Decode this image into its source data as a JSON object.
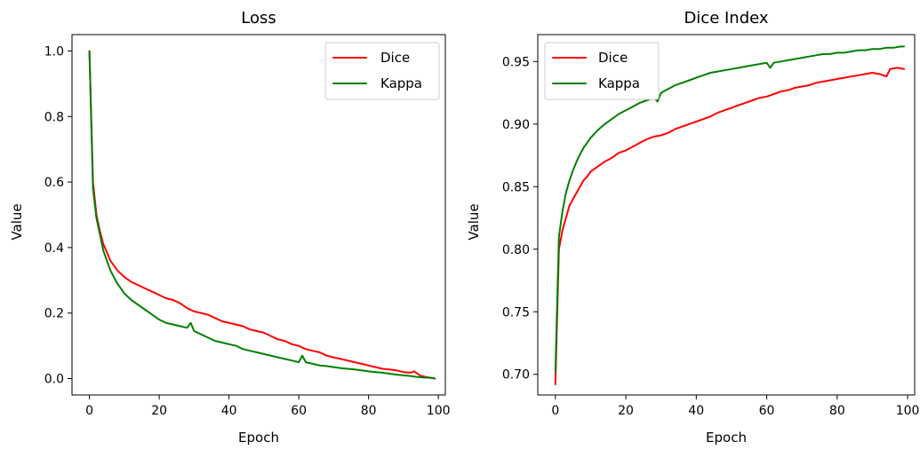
{
  "chart_data": [
    {
      "type": "line",
      "title": "Loss",
      "xlabel": "Epoch",
      "ylabel": "Value",
      "xlim": [
        -5,
        102
      ],
      "ylim": [
        -0.05,
        1.05
      ],
      "xticks": [
        0,
        20,
        40,
        60,
        80,
        100
      ],
      "yticks": [
        0.0,
        0.2,
        0.4,
        0.6,
        0.8,
        1.0
      ],
      "ytick_labels": [
        "0.0",
        "0.2",
        "0.4",
        "0.6",
        "0.8",
        "1.0"
      ],
      "legend_position": "top-right",
      "series": [
        {
          "name": "Dice",
          "color": "#ff0000",
          "x": [
            0,
            1,
            2,
            3,
            4,
            5,
            6,
            7,
            8,
            9,
            10,
            12,
            14,
            16,
            18,
            20,
            22,
            24,
            26,
            28,
            30,
            32,
            34,
            36,
            38,
            40,
            42,
            44,
            46,
            48,
            50,
            52,
            54,
            56,
            58,
            60,
            62,
            64,
            66,
            68,
            70,
            72,
            74,
            76,
            78,
            80,
            82,
            84,
            86,
            88,
            90,
            92,
            93,
            95,
            97,
            99
          ],
          "y": [
            1.0,
            0.6,
            0.5,
            0.45,
            0.41,
            0.385,
            0.36,
            0.345,
            0.33,
            0.32,
            0.31,
            0.295,
            0.285,
            0.275,
            0.265,
            0.255,
            0.245,
            0.24,
            0.23,
            0.215,
            0.205,
            0.2,
            0.195,
            0.185,
            0.175,
            0.17,
            0.165,
            0.16,
            0.15,
            0.145,
            0.14,
            0.13,
            0.12,
            0.115,
            0.105,
            0.1,
            0.09,
            0.085,
            0.08,
            0.07,
            0.065,
            0.06,
            0.055,
            0.05,
            0.045,
            0.04,
            0.035,
            0.03,
            0.028,
            0.025,
            0.02,
            0.018,
            0.022,
            0.008,
            0.004,
            0.0
          ]
        },
        {
          "name": "Kappa",
          "color": "#008000",
          "x": [
            0,
            1,
            2,
            3,
            4,
            5,
            6,
            7,
            8,
            9,
            10,
            12,
            14,
            16,
            18,
            20,
            22,
            24,
            26,
            28,
            29,
            30,
            32,
            34,
            36,
            38,
            40,
            42,
            44,
            46,
            48,
            50,
            52,
            54,
            56,
            58,
            60,
            61,
            62,
            64,
            66,
            68,
            70,
            72,
            74,
            76,
            78,
            80,
            82,
            84,
            86,
            88,
            90,
            92,
            94,
            96,
            98,
            99
          ],
          "y": [
            1.0,
            0.58,
            0.49,
            0.44,
            0.39,
            0.36,
            0.33,
            0.31,
            0.29,
            0.275,
            0.26,
            0.24,
            0.225,
            0.21,
            0.195,
            0.18,
            0.17,
            0.165,
            0.16,
            0.155,
            0.17,
            0.145,
            0.135,
            0.125,
            0.115,
            0.11,
            0.105,
            0.1,
            0.09,
            0.085,
            0.08,
            0.075,
            0.07,
            0.065,
            0.06,
            0.055,
            0.05,
            0.07,
            0.05,
            0.045,
            0.04,
            0.038,
            0.035,
            0.032,
            0.03,
            0.028,
            0.025,
            0.022,
            0.02,
            0.018,
            0.015,
            0.012,
            0.01,
            0.008,
            0.005,
            0.003,
            0.002,
            0.0
          ]
        }
      ]
    },
    {
      "type": "line",
      "title": "Dice Index",
      "xlabel": "Epoch",
      "ylabel": "Value",
      "xlim": [
        -5,
        102
      ],
      "ylim": [
        0.6835,
        0.9715
      ],
      "xticks": [
        0,
        20,
        40,
        60,
        80,
        100
      ],
      "yticks": [
        0.7,
        0.75,
        0.8,
        0.85,
        0.9,
        0.95
      ],
      "ytick_labels": [
        "0.70",
        "0.75",
        "0.80",
        "0.85",
        "0.90",
        "0.95"
      ],
      "legend_position": "top-left",
      "series": [
        {
          "name": "Dice",
          "color": "#ff0000",
          "x": [
            0,
            1,
            2,
            3,
            4,
            5,
            6,
            7,
            8,
            9,
            10,
            12,
            14,
            16,
            18,
            20,
            22,
            24,
            26,
            28,
            30,
            32,
            34,
            36,
            38,
            40,
            42,
            44,
            46,
            48,
            50,
            52,
            54,
            56,
            58,
            60,
            62,
            64,
            66,
            68,
            70,
            72,
            74,
            76,
            78,
            80,
            82,
            84,
            86,
            88,
            90,
            92,
            94,
            95,
            97,
            99
          ],
          "y": [
            0.692,
            0.8,
            0.815,
            0.825,
            0.835,
            0.84,
            0.845,
            0.85,
            0.855,
            0.858,
            0.862,
            0.866,
            0.87,
            0.873,
            0.877,
            0.879,
            0.882,
            0.885,
            0.888,
            0.89,
            0.891,
            0.893,
            0.896,
            0.898,
            0.9,
            0.902,
            0.904,
            0.906,
            0.909,
            0.911,
            0.913,
            0.915,
            0.917,
            0.919,
            0.921,
            0.922,
            0.924,
            0.926,
            0.927,
            0.929,
            0.93,
            0.931,
            0.933,
            0.934,
            0.935,
            0.936,
            0.937,
            0.938,
            0.939,
            0.94,
            0.941,
            0.94,
            0.938,
            0.944,
            0.945,
            0.944
          ]
        },
        {
          "name": "Kappa",
          "color": "#008000",
          "x": [
            0,
            1,
            2,
            3,
            4,
            5,
            6,
            7,
            8,
            9,
            10,
            12,
            14,
            16,
            18,
            20,
            22,
            24,
            26,
            28,
            29,
            30,
            32,
            34,
            36,
            38,
            40,
            42,
            44,
            46,
            48,
            50,
            52,
            54,
            56,
            58,
            60,
            61,
            62,
            64,
            66,
            68,
            70,
            72,
            74,
            76,
            78,
            80,
            82,
            84,
            86,
            88,
            90,
            92,
            94,
            96,
            98,
            99
          ],
          "y": [
            0.702,
            0.81,
            0.83,
            0.845,
            0.855,
            0.863,
            0.87,
            0.876,
            0.881,
            0.885,
            0.889,
            0.895,
            0.9,
            0.904,
            0.908,
            0.911,
            0.914,
            0.917,
            0.919,
            0.921,
            0.918,
            0.925,
            0.928,
            0.931,
            0.933,
            0.935,
            0.937,
            0.939,
            0.941,
            0.942,
            0.943,
            0.944,
            0.945,
            0.946,
            0.947,
            0.948,
            0.949,
            0.945,
            0.949,
            0.95,
            0.951,
            0.952,
            0.953,
            0.954,
            0.955,
            0.956,
            0.956,
            0.957,
            0.957,
            0.958,
            0.959,
            0.959,
            0.96,
            0.96,
            0.961,
            0.961,
            0.962,
            0.962
          ]
        }
      ]
    }
  ]
}
